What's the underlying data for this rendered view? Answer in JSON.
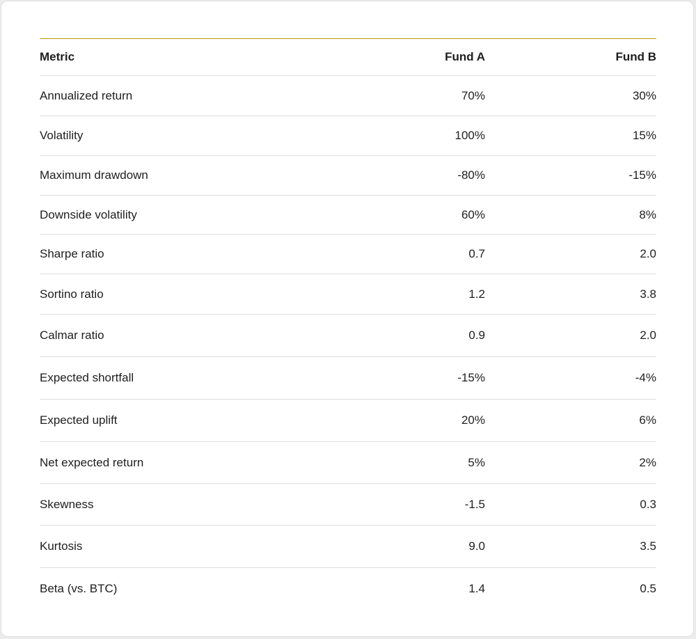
{
  "table": {
    "headers": [
      "Metric",
      "Fund A",
      "Fund B"
    ],
    "rows": [
      [
        "Annualized return",
        "70%",
        "30%"
      ],
      [
        "Volatility",
        "100%",
        "15%"
      ],
      [
        "Maximum drawdown",
        "-80%",
        "-15%"
      ],
      [
        "Downside volatility",
        "60%",
        "8%"
      ],
      [
        "Sharpe ratio",
        "0.7",
        "2.0"
      ],
      [
        "Sortino ratio",
        "1.2",
        "3.8"
      ],
      [
        "Calmar ratio",
        "0.9",
        "2.0"
      ],
      [
        "Expected shortfall",
        "-15%",
        "-4%"
      ],
      [
        "Expected uplift",
        "20%",
        "6%"
      ],
      [
        "Net expected return",
        "5%",
        "2%"
      ],
      [
        "Skewness",
        "-1.5",
        "0.3"
      ],
      [
        "Kurtosis",
        "9.0",
        "3.5"
      ],
      [
        "Beta (vs. BTC)",
        "1.4",
        "0.5"
      ]
    ]
  },
  "colors": {
    "accent_rule": "#b8960c",
    "row_divider": "#dedede",
    "text": "#1e1e1e",
    "card_background": "#ffffff",
    "page_background": "#ececec"
  }
}
